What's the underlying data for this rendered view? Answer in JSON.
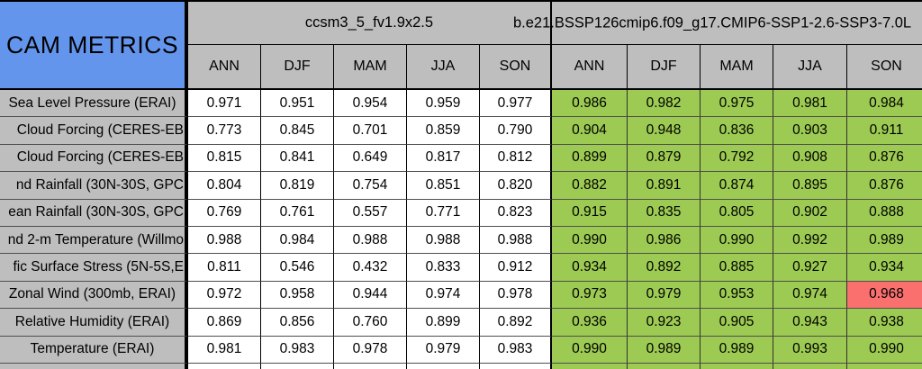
{
  "chart_data": {
    "type": "table",
    "title": "CAM METRICS",
    "column_groups": [
      {
        "name": "ccsm3_5_fv1.9x2.5",
        "seasons": [
          "ANN",
          "DJF",
          "MAM",
          "JJA",
          "SON"
        ]
      },
      {
        "name": "b.e21.BSSP126cmip6.f09_g17.CMIP6-SSP1-2.6-SSP3-7.0L",
        "seasons": [
          "ANN",
          "DJF",
          "MAM",
          "JJA",
          "SON"
        ]
      }
    ],
    "columns": [
      "ANN",
      "DJF",
      "MAM",
      "JJA",
      "SON",
      "ANN",
      "DJF",
      "MAM",
      "JJA",
      "SON"
    ],
    "rows": [
      {
        "label": "Sea Level Pressure (ERAI)",
        "values": [
          "0.971",
          "0.951",
          "0.954",
          "0.959",
          "0.977",
          "0.986",
          "0.982",
          "0.975",
          "0.981",
          "0.984"
        ]
      },
      {
        "label": "Cloud Forcing (CERES-EB",
        "values": [
          "0.773",
          "0.845",
          "0.701",
          "0.859",
          "0.790",
          "0.904",
          "0.948",
          "0.836",
          "0.903",
          "0.911"
        ]
      },
      {
        "label": "Cloud Forcing (CERES-EB",
        "values": [
          "0.815",
          "0.841",
          "0.649",
          "0.817",
          "0.812",
          "0.899",
          "0.879",
          "0.792",
          "0.908",
          "0.876"
        ]
      },
      {
        "label": "nd Rainfall (30N-30S, GPC",
        "values": [
          "0.804",
          "0.819",
          "0.754",
          "0.851",
          "0.820",
          "0.882",
          "0.891",
          "0.874",
          "0.895",
          "0.876"
        ]
      },
      {
        "label": "ean Rainfall (30N-30S, GPC",
        "values": [
          "0.769",
          "0.761",
          "0.557",
          "0.771",
          "0.823",
          "0.915",
          "0.835",
          "0.805",
          "0.902",
          "0.888"
        ]
      },
      {
        "label": "nd 2-m Temperature (Willmo",
        "values": [
          "0.988",
          "0.984",
          "0.988",
          "0.988",
          "0.988",
          "0.990",
          "0.986",
          "0.990",
          "0.992",
          "0.989"
        ]
      },
      {
        "label": "fic Surface Stress (5N-5S,E",
        "values": [
          "0.811",
          "0.546",
          "0.432",
          "0.833",
          "0.912",
          "0.934",
          "0.892",
          "0.885",
          "0.927",
          "0.934"
        ]
      },
      {
        "label": "Zonal Wind (300mb, ERAI)",
        "values": [
          "0.972",
          "0.958",
          "0.944",
          "0.974",
          "0.978",
          "0.973",
          "0.979",
          "0.953",
          "0.974",
          "0.968"
        ]
      },
      {
        "label": "Relative Humidity (ERAI)",
        "values": [
          "0.869",
          "0.856",
          "0.760",
          "0.899",
          "0.892",
          "0.936",
          "0.923",
          "0.905",
          "0.943",
          "0.938"
        ]
      },
      {
        "label": "Temperature (ERAI)",
        "values": [
          "0.981",
          "0.983",
          "0.978",
          "0.979",
          "0.983",
          "0.990",
          "0.989",
          "0.989",
          "0.993",
          "0.990"
        ]
      }
    ],
    "highlight": {
      "row_index": 7,
      "col_index": 9,
      "color": "#f9706e"
    },
    "layout": {
      "grid": "on",
      "legend": "none"
    }
  },
  "colors": {
    "title_bg": "#6495ed",
    "header_bg": "#bebebe",
    "label_bg": "#bebebe",
    "model1_cell_bg": "#ffffff",
    "model2_cell_bg": "#9cca52",
    "highlight_bg": "#f9706e",
    "border": "#000000",
    "text": "#000000"
  }
}
